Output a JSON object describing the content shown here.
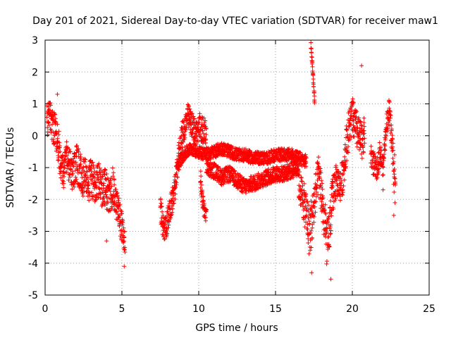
{
  "colors": {
    "points": "#ff0000",
    "grid": "#a0a0a0",
    "axis": "#000000",
    "background": "#ffffff"
  },
  "chart_data": {
    "type": "scatter",
    "marker": "plus",
    "title": "Day 201 of 2021, Sidereal Day-to-day VTEC variation (SDTVAR) for receiver maw1",
    "xlabel": "GPS time / hours",
    "ylabel": "SDTVAR / TECUs",
    "xlim": [
      0,
      25
    ],
    "ylim": [
      -5,
      3
    ],
    "xticks": [
      0,
      5,
      10,
      15,
      20,
      25
    ],
    "yticks": [
      -5,
      -4,
      -3,
      -2,
      -1,
      0,
      1,
      2,
      3
    ],
    "grid": true,
    "series": [
      {
        "name": "SDTVAR",
        "segments": [
          {
            "x": [
              0.1,
              0.3,
              0.5,
              0.7,
              0.9,
              1.0,
              1.2,
              1.4,
              1.6,
              1.8,
              2.0,
              2.2,
              2.4,
              2.6,
              2.8,
              3.0,
              3.2,
              3.4,
              3.6,
              3.8,
              4.0,
              4.2,
              4.4,
              4.6,
              4.8,
              5.0,
              5.2
            ],
            "y": [
              0.4,
              0.6,
              0.3,
              0.1,
              -0.4,
              -0.8,
              -1.2,
              -0.6,
              -1.0,
              -1.3,
              -0.8,
              -1.0,
              -1.4,
              -1.1,
              -1.5,
              -1.3,
              -1.6,
              -1.2,
              -1.8,
              -1.5,
              -1.7,
              -2.0,
              -1.6,
              -2.1,
              -2.4,
              -2.9,
              -3.4
            ],
            "spread": [
              0.6,
              0.5,
              0.6,
              0.5,
              0.6,
              0.5,
              0.6,
              0.5,
              0.6,
              0.5,
              0.6,
              0.6,
              0.6,
              0.6,
              0.6,
              0.6,
              0.7,
              0.6,
              0.7,
              0.6,
              0.6,
              0.6,
              0.6,
              0.5,
              0.5,
              0.5,
              0.4
            ]
          },
          {
            "x": [
              7.5,
              7.7,
              7.9,
              8.1,
              8.3,
              8.5,
              8.7,
              8.9,
              9.1,
              9.3,
              9.5,
              9.7,
              9.9,
              10.1,
              10.3,
              10.5
            ],
            "y": [
              -2.2,
              -3.0,
              -2.8,
              -2.4,
              -2.0,
              -1.5,
              -0.6,
              0.0,
              0.3,
              0.6,
              0.4,
              0.2,
              0.1,
              0.3,
              0.1,
              0.0
            ],
            "spread": [
              0.4,
              0.4,
              0.4,
              0.4,
              0.4,
              0.4,
              0.4,
              0.4,
              0.4,
              0.4,
              0.4,
              0.4,
              0.4,
              0.5,
              0.5,
              0.4
            ]
          },
          {
            "x": [
              10.1,
              10.2,
              10.3,
              10.4,
              10.5
            ],
            "y": [
              -1.2,
              -1.8,
              -2.2,
              -2.4,
              -2.5
            ],
            "spread": [
              0.3,
              0.3,
              0.3,
              0.3,
              0.2
            ]
          },
          {
            "x": [
              8.6,
              9.0,
              9.5,
              10.0,
              10.5,
              11.0,
              11.5,
              12.0,
              12.5,
              13.0,
              13.5,
              14.0,
              14.5,
              15.0,
              15.5,
              16.0,
              16.5,
              17.0
            ],
            "y": [
              -1.0,
              -0.6,
              -0.4,
              -0.5,
              -0.6,
              -0.5,
              -0.4,
              -0.5,
              -0.6,
              -0.6,
              -0.7,
              -0.7,
              -0.7,
              -0.6,
              -0.6,
              -0.6,
              -0.7,
              -0.8
            ],
            "spread": [
              0.2,
              0.2,
              0.2,
              0.2,
              0.2,
              0.2,
              0.2,
              0.2,
              0.2,
              0.2,
              0.2,
              0.2,
              0.2,
              0.2,
              0.2,
              0.2,
              0.2,
              0.2
            ]
          },
          {
            "x": [
              10.5,
              11.0,
              11.5,
              12.0,
              12.5,
              13.0,
              13.5,
              14.0,
              14.5,
              15.0,
              15.5,
              16.0,
              16.5
            ],
            "y": [
              -1.0,
              -1.1,
              -1.3,
              -1.2,
              -1.4,
              -1.6,
              -1.5,
              -1.4,
              -1.3,
              -1.2,
              -1.2,
              -1.1,
              -1.0
            ],
            "spread": [
              0.25,
              0.25,
              0.25,
              0.25,
              0.25,
              0.25,
              0.25,
              0.25,
              0.25,
              0.25,
              0.25,
              0.25,
              0.25
            ]
          },
          {
            "x": [
              16.5,
              16.8,
              17.0,
              17.2,
              17.4,
              17.6,
              17.8,
              18.0,
              18.2,
              18.4,
              18.6,
              18.8,
              19.0,
              19.2,
              19.4,
              19.6,
              19.8,
              20.0,
              20.2,
              20.4,
              20.6,
              20.8
            ],
            "y": [
              -1.5,
              -2.0,
              -2.4,
              -3.0,
              -2.6,
              -1.8,
              -1.2,
              -1.8,
              -2.8,
              -3.5,
              -2.4,
              -1.6,
              -1.4,
              -1.6,
              -1.2,
              -0.3,
              0.3,
              0.6,
              0.3,
              0.0,
              -0.2,
              0.1
            ],
            "spread": [
              0.5,
              0.6,
              0.7,
              0.8,
              0.8,
              0.6,
              0.6,
              0.7,
              0.8,
              0.8,
              0.7,
              0.6,
              0.5,
              0.5,
              0.6,
              0.6,
              0.6,
              0.6,
              0.6,
              0.6,
              0.6,
              0.5
            ]
          },
          {
            "x": [
              17.3,
              17.35,
              17.4,
              17.45,
              17.5,
              17.55
            ],
            "y": [
              2.9,
              2.5,
              2.2,
              1.8,
              1.4,
              1.0
            ],
            "spread": [
              0.1,
              0.1,
              0.1,
              0.1,
              0.1,
              0.1
            ]
          },
          {
            "x": [
              21.2,
              21.4,
              21.6,
              21.8,
              22.0,
              22.2,
              22.4,
              22.6,
              22.8
            ],
            "y": [
              -0.6,
              -0.9,
              -1.1,
              -0.5,
              -1.0,
              0.3,
              0.8,
              -0.3,
              -1.9
            ],
            "spread": [
              0.4,
              0.4,
              0.3,
              0.4,
              0.3,
              0.3,
              0.4,
              0.5,
              0.6
            ]
          }
        ],
        "outliers": {
          "x": [
            0.8,
            4.0,
            5.15,
            17.35,
            18.6,
            20.6,
            22.0,
            22.7,
            22.75
          ],
          "y": [
            1.3,
            -3.3,
            -4.1,
            -4.3,
            -4.5,
            2.2,
            -1.7,
            -2.5,
            -0.6
          ]
        }
      }
    ]
  }
}
